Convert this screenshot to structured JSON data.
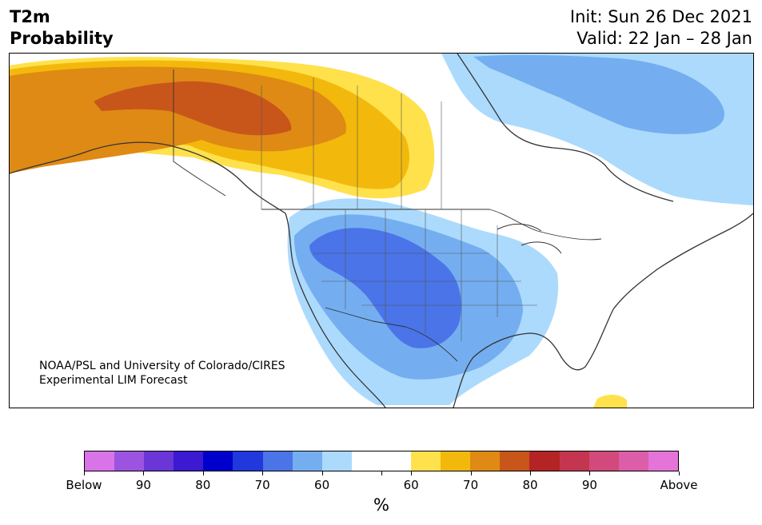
{
  "header": {
    "title_line1": "T2m",
    "title_line2": "Probability",
    "init": "Init: Sun 26 Dec 2021",
    "valid": "Valid: 22 Jan – 28 Jan"
  },
  "credit": {
    "line1": "NOAA/PSL and University of Colorado/CIRES",
    "line2": "Experimental LIM Forecast"
  },
  "colorbar": {
    "colors": [
      "#d873e8",
      "#9c54e0",
      "#6b36d8",
      "#3b1ad2",
      "#0000cc",
      "#2038dc",
      "#4a74e8",
      "#74aef0",
      "#acdafc",
      "#ffffff",
      "#ffffff",
      "#ffe14c",
      "#f2b90c",
      "#df8a14",
      "#c8561a",
      "#b42424",
      "#c43650",
      "#d24a7c",
      "#dc5ea8",
      "#e474d8"
    ],
    "labels": [
      "Below",
      "90",
      "80",
      "70",
      "60",
      "60",
      "70",
      "80",
      "90",
      "Above"
    ],
    "unit": "%"
  },
  "legend_colors": {
    "below_60": "#acdafc",
    "below_70": "#74aef0",
    "below_80": "#4a74e8",
    "above_60": "#ffe14c",
    "above_70": "#f2b90c",
    "above_80": "#df8a14",
    "above_90": "#c8561a"
  }
}
